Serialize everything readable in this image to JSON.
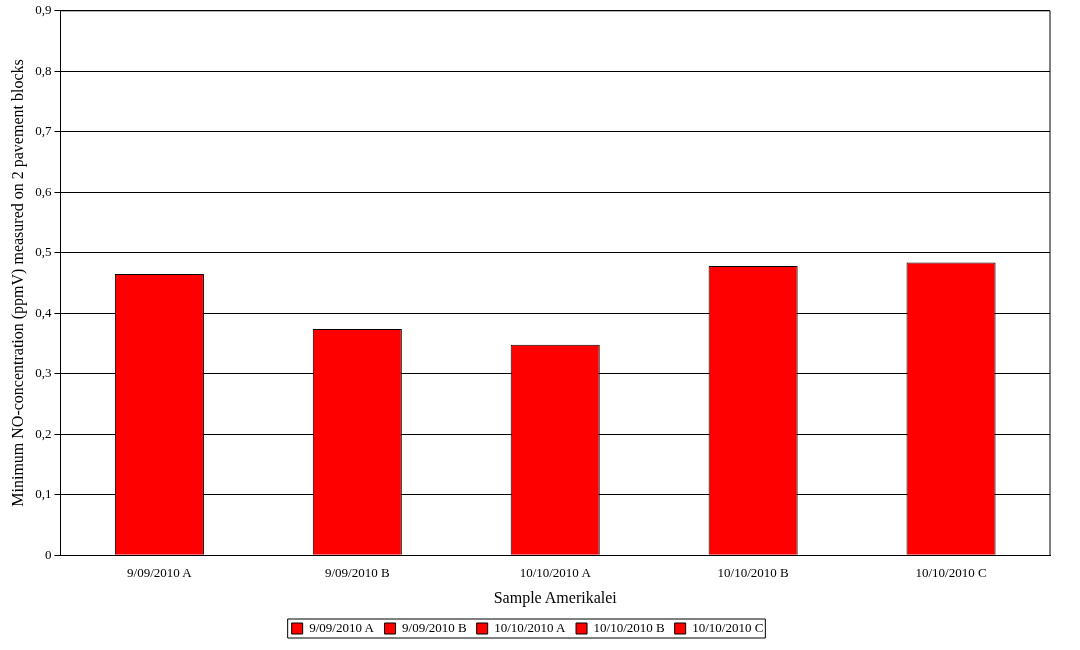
{
  "chart_data": {
    "type": "bar",
    "xlabel": "Sample Amerikalei",
    "ylabel": "Minimum NO-concentration (ppmV) measured on 2 pavement blocks",
    "categories": [
      "9/09/2010 A",
      "9/09/2010 B",
      "10/10/2010 A",
      "10/10/2010 B",
      "10/10/2010 C"
    ],
    "series": [
      {
        "name": "9/09/2010 A",
        "color": "#ff0000",
        "values": [
          0.465,
          null,
          null,
          null,
          null
        ]
      },
      {
        "name": "9/09/2010 B",
        "color": "#ff0000",
        "values": [
          null,
          0.374,
          null,
          null,
          null
        ]
      },
      {
        "name": "10/10/2010 A",
        "color": "#ff0000",
        "values": [
          null,
          null,
          0.348,
          null,
          null
        ]
      },
      {
        "name": "10/10/2010 B",
        "color": "#ff0000",
        "values": [
          null,
          null,
          null,
          0.478,
          null
        ]
      },
      {
        "name": "10/10/2010 C",
        "color": "#ff0000",
        "values": [
          null,
          null,
          null,
          null,
          0.484
        ]
      }
    ],
    "ylim": [
      0,
      0.9
    ],
    "yticks": [
      0,
      {
        "value": 0.1,
        "label": "0,1"
      },
      {
        "value": 0.2,
        "label": "0,2"
      },
      {
        "value": 0.3,
        "label": "0,3"
      },
      {
        "value": 0.4,
        "label": "0,4"
      },
      {
        "value": 0.5,
        "label": "0,5"
      },
      {
        "value": 0.6,
        "label": "0,6"
      },
      {
        "value": 0.7,
        "label": "0,7"
      },
      {
        "value": 0.8,
        "label": "0,8"
      },
      {
        "value": 0.9,
        "label": "0,9"
      }
    ],
    "grid": "y",
    "legend": "bottom"
  }
}
